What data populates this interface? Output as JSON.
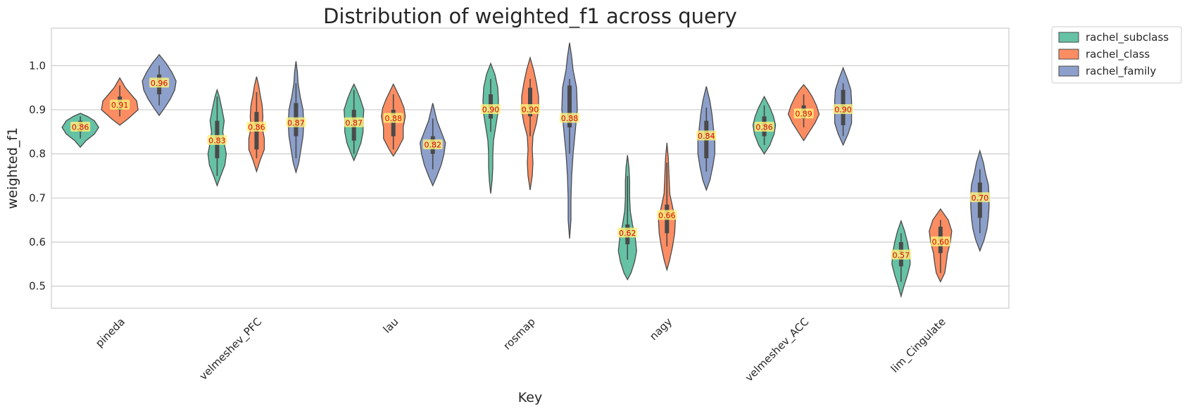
{
  "chart_data": {
    "type": "violin",
    "title": "Distribution of weighted_f1 across query",
    "xlabel": "Key",
    "ylabel": "weighted_f1",
    "ylim": [
      0.45,
      1.085
    ],
    "yticks": [
      "0.5",
      "0.6",
      "0.7",
      "0.8",
      "0.9",
      "1.0"
    ],
    "grid": true,
    "legend_position": "outside-top-right",
    "categories": [
      "pineda",
      "velmeshev_PFC",
      "lau",
      "rosmap",
      "nagy",
      "velmeshev_ACC",
      "lim_Cingulate"
    ],
    "series": [
      {
        "name": "rachel_subclass",
        "color": "#66c2a5",
        "median_labels": [
          "0.86",
          "0.83",
          "0.87",
          "0.90",
          "0.62",
          "0.86",
          "0.57"
        ],
        "violins": [
          {
            "median": 0.86,
            "q1": 0.85,
            "q3": 0.875,
            "wlo": 0.835,
            "whi": 0.885,
            "profile": [
              [
                0.815,
                0
              ],
              [
                0.83,
                8
              ],
              [
                0.845,
                20
              ],
              [
                0.86,
                26
              ],
              [
                0.875,
                20
              ],
              [
                0.885,
                10
              ],
              [
                0.892,
                0
              ]
            ]
          },
          {
            "median": 0.83,
            "q1": 0.79,
            "q3": 0.875,
            "wlo": 0.75,
            "whi": 0.93,
            "profile": [
              [
                0.728,
                0
              ],
              [
                0.75,
                5
              ],
              [
                0.775,
                11
              ],
              [
                0.8,
                13
              ],
              [
                0.825,
                10
              ],
              [
                0.85,
                8
              ],
              [
                0.875,
                10
              ],
              [
                0.9,
                7
              ],
              [
                0.93,
                3
              ],
              [
                0.945,
                0
              ]
            ]
          },
          {
            "median": 0.87,
            "q1": 0.83,
            "q3": 0.9,
            "wlo": 0.8,
            "whi": 0.945,
            "profile": [
              [
                0.785,
                0
              ],
              [
                0.8,
                4
              ],
              [
                0.825,
                10
              ],
              [
                0.85,
                13
              ],
              [
                0.875,
                13
              ],
              [
                0.9,
                14
              ],
              [
                0.925,
                9
              ],
              [
                0.945,
                4
              ],
              [
                0.958,
                0
              ]
            ]
          },
          {
            "median": 0.9,
            "q1": 0.88,
            "q3": 0.935,
            "wlo": 0.85,
            "whi": 0.97,
            "profile": [
              [
                0.71,
                0
              ],
              [
                0.74,
                2
              ],
              [
                0.77,
                3
              ],
              [
                0.8,
                3
              ],
              [
                0.83,
                4
              ],
              [
                0.86,
                7
              ],
              [
                0.89,
                10
              ],
              [
                0.92,
                11
              ],
              [
                0.95,
                10
              ],
              [
                0.98,
                6
              ],
              [
                1.005,
                0
              ]
            ]
          },
          {
            "median": 0.62,
            "q1": 0.595,
            "q3": 0.64,
            "wlo": 0.56,
            "whi": 0.75,
            "profile": [
              [
                0.515,
                0
              ],
              [
                0.53,
                5
              ],
              [
                0.555,
                10
              ],
              [
                0.58,
                13
              ],
              [
                0.61,
                11
              ],
              [
                0.64,
                7
              ],
              [
                0.67,
                4
              ],
              [
                0.7,
                3
              ],
              [
                0.74,
                3
              ],
              [
                0.77,
                2
              ],
              [
                0.797,
                0
              ]
            ]
          },
          {
            "median": 0.86,
            "q1": 0.84,
            "q3": 0.885,
            "wlo": 0.82,
            "whi": 0.91,
            "profile": [
              [
                0.8,
                0
              ],
              [
                0.82,
                8
              ],
              [
                0.845,
                14
              ],
              [
                0.865,
                16
              ],
              [
                0.885,
                13
              ],
              [
                0.905,
                8
              ],
              [
                0.93,
                0
              ]
            ]
          },
          {
            "median": 0.57,
            "q1": 0.545,
            "q3": 0.6,
            "wlo": 0.51,
            "whi": 0.62,
            "profile": [
              [
                0.477,
                0
              ],
              [
                0.5,
                4
              ],
              [
                0.525,
                9
              ],
              [
                0.55,
                13
              ],
              [
                0.575,
                12
              ],
              [
                0.6,
                9
              ],
              [
                0.625,
                5
              ],
              [
                0.648,
                0
              ]
            ]
          }
        ]
      },
      {
        "name": "rachel_class",
        "color": "#fc8d62",
        "median_labels": [
          "0.91",
          "0.86",
          "0.88",
          "0.90",
          "0.66",
          "0.89",
          "0.60"
        ],
        "violins": [
          {
            "median": 0.91,
            "q1": 0.9,
            "q3": 0.93,
            "wlo": 0.885,
            "whi": 0.955,
            "profile": [
              [
                0.865,
                0
              ],
              [
                0.88,
                12
              ],
              [
                0.9,
                26
              ],
              [
                0.92,
                24
              ],
              [
                0.935,
                16
              ],
              [
                0.95,
                8
              ],
              [
                0.972,
                0
              ]
            ]
          },
          {
            "median": 0.86,
            "q1": 0.81,
            "q3": 0.895,
            "wlo": 0.79,
            "whi": 0.94,
            "profile": [
              [
                0.76,
                0
              ],
              [
                0.785,
                5
              ],
              [
                0.81,
                11
              ],
              [
                0.835,
                11
              ],
              [
                0.86,
                8
              ],
              [
                0.885,
                9
              ],
              [
                0.91,
                8
              ],
              [
                0.935,
                5
              ],
              [
                0.955,
                3
              ],
              [
                0.975,
                0
              ]
            ]
          },
          {
            "median": 0.88,
            "q1": 0.84,
            "q3": 0.9,
            "wlo": 0.81,
            "whi": 0.935,
            "profile": [
              [
                0.795,
                0
              ],
              [
                0.81,
                6
              ],
              [
                0.835,
                14
              ],
              [
                0.86,
                14
              ],
              [
                0.885,
                17
              ],
              [
                0.905,
                15
              ],
              [
                0.925,
                10
              ],
              [
                0.945,
                4
              ],
              [
                0.958,
                0
              ]
            ]
          },
          {
            "median": 0.9,
            "q1": 0.885,
            "q3": 0.95,
            "wlo": 0.84,
            "whi": 0.97,
            "profile": [
              [
                0.718,
                0
              ],
              [
                0.75,
                3
              ],
              [
                0.78,
                4
              ],
              [
                0.81,
                3
              ],
              [
                0.84,
                4
              ],
              [
                0.87,
                9
              ],
              [
                0.9,
                12
              ],
              [
                0.93,
                12
              ],
              [
                0.96,
                9
              ],
              [
                0.99,
                5
              ],
              [
                1.018,
                0
              ]
            ]
          },
          {
            "median": 0.66,
            "q1": 0.62,
            "q3": 0.685,
            "wlo": 0.59,
            "whi": 0.78,
            "profile": [
              [
                0.537,
                0
              ],
              [
                0.56,
                4
              ],
              [
                0.59,
                8
              ],
              [
                0.62,
                11
              ],
              [
                0.65,
                12
              ],
              [
                0.68,
                8
              ],
              [
                0.71,
                4
              ],
              [
                0.75,
                3
              ],
              [
                0.79,
                2
              ],
              [
                0.825,
                0
              ]
            ]
          },
          {
            "median": 0.89,
            "q1": 0.88,
            "q3": 0.91,
            "wlo": 0.86,
            "whi": 0.935,
            "profile": [
              [
                0.83,
                0
              ],
              [
                0.85,
                8
              ],
              [
                0.87,
                16
              ],
              [
                0.89,
                22
              ],
              [
                0.91,
                18
              ],
              [
                0.93,
                12
              ],
              [
                0.945,
                6
              ],
              [
                0.957,
                0
              ]
            ]
          },
          {
            "median": 0.6,
            "q1": 0.575,
            "q3": 0.635,
            "wlo": 0.53,
            "whi": 0.65,
            "profile": [
              [
                0.51,
                0
              ],
              [
                0.53,
                6
              ],
              [
                0.55,
                8
              ],
              [
                0.575,
                10
              ],
              [
                0.6,
                14
              ],
              [
                0.625,
                16
              ],
              [
                0.65,
                11
              ],
              [
                0.675,
                0
              ]
            ]
          }
        ]
      },
      {
        "name": "rachel_family",
        "color": "#8da0cb",
        "median_labels": [
          "0.96",
          "0.87",
          "0.82",
          "0.88",
          "0.84",
          "0.90",
          "0.70"
        ],
        "violins": [
          {
            "median": 0.96,
            "q1": 0.935,
            "q3": 0.98,
            "wlo": 0.91,
            "whi": 1.0,
            "profile": [
              [
                0.887,
                0
              ],
              [
                0.905,
                8
              ],
              [
                0.925,
                16
              ],
              [
                0.945,
                22
              ],
              [
                0.965,
                24
              ],
              [
                0.985,
                18
              ],
              [
                1.005,
                10
              ],
              [
                1.025,
                0
              ]
            ]
          },
          {
            "median": 0.87,
            "q1": 0.84,
            "q3": 0.915,
            "wlo": 0.79,
            "whi": 0.96,
            "profile": [
              [
                0.758,
                0
              ],
              [
                0.78,
                4
              ],
              [
                0.81,
                7
              ],
              [
                0.84,
                10
              ],
              [
                0.87,
                11
              ],
              [
                0.9,
                10
              ],
              [
                0.93,
                6
              ],
              [
                0.96,
                3
              ],
              [
                0.985,
                2
              ],
              [
                1.01,
                0
              ]
            ]
          },
          {
            "median": 0.82,
            "q1": 0.8,
            "q3": 0.84,
            "wlo": 0.765,
            "whi": 0.88,
            "profile": [
              [
                0.728,
                0
              ],
              [
                0.75,
                6
              ],
              [
                0.775,
                12
              ],
              [
                0.8,
                16
              ],
              [
                0.825,
                18
              ],
              [
                0.85,
                12
              ],
              [
                0.875,
                6
              ],
              [
                0.895,
                3
              ],
              [
                0.915,
                0
              ]
            ]
          },
          {
            "median": 0.88,
            "q1": 0.86,
            "q3": 0.955,
            "wlo": 0.8,
            "whi": 0.97,
            "profile": [
              [
                0.608,
                0
              ],
              [
                0.65,
                2
              ],
              [
                0.7,
                2
              ],
              [
                0.75,
                3
              ],
              [
                0.8,
                5
              ],
              [
                0.85,
                8
              ],
              [
                0.9,
                11
              ],
              [
                0.95,
                10
              ],
              [
                0.99,
                5
              ],
              [
                1.02,
                3
              ],
              [
                1.052,
                0
              ]
            ]
          },
          {
            "median": 0.84,
            "q1": 0.79,
            "q3": 0.875,
            "wlo": 0.76,
            "whi": 0.905,
            "profile": [
              [
                0.718,
                0
              ],
              [
                0.74,
                5
              ],
              [
                0.77,
                9
              ],
              [
                0.8,
                12
              ],
              [
                0.83,
                12
              ],
              [
                0.86,
                10
              ],
              [
                0.89,
                8
              ],
              [
                0.92,
                5
              ],
              [
                0.953,
                0
              ]
            ]
          },
          {
            "median": 0.9,
            "q1": 0.865,
            "q3": 0.945,
            "wlo": 0.84,
            "whi": 0.96,
            "profile": [
              [
                0.82,
                0
              ],
              [
                0.845,
                7
              ],
              [
                0.87,
                12
              ],
              [
                0.895,
                12
              ],
              [
                0.92,
                12
              ],
              [
                0.945,
                11
              ],
              [
                0.97,
                6
              ],
              [
                0.995,
                0
              ]
            ]
          },
          {
            "median": 0.7,
            "q1": 0.655,
            "q3": 0.735,
            "wlo": 0.62,
            "whi": 0.765,
            "profile": [
              [
                0.58,
                0
              ],
              [
                0.605,
                6
              ],
              [
                0.63,
                10
              ],
              [
                0.655,
                12
              ],
              [
                0.68,
                13
              ],
              [
                0.705,
                13
              ],
              [
                0.73,
                12
              ],
              [
                0.755,
                8
              ],
              [
                0.78,
                5
              ],
              [
                0.807,
                0
              ]
            ]
          }
        ]
      }
    ]
  }
}
